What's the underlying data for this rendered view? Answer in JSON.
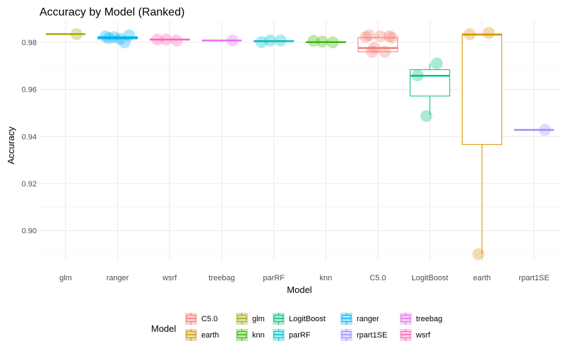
{
  "chart_data": {
    "type": "box",
    "title": "Accuracy by Model (Ranked)",
    "xlabel": "Model",
    "ylabel": "Accuracy",
    "ylim": [
      0.887,
      0.989
    ],
    "yticks": [
      0.9,
      0.92,
      0.94,
      0.96,
      0.98
    ],
    "ytick_labels": [
      "0.90",
      "0.92",
      "0.94",
      "0.96",
      "0.98"
    ],
    "grid": true,
    "legend_position": "bottom",
    "legend_title": "Model",
    "categories": [
      "glm",
      "ranger",
      "wsrf",
      "treebag",
      "parRF",
      "knn",
      "C5.0",
      "LogitBoost",
      "earth",
      "rpart1SE"
    ],
    "series": [
      {
        "name": "glm",
        "color": "#A3A500",
        "box": {
          "lower_whisker": 0.9835,
          "q1": 0.9835,
          "median": 0.9835,
          "q3": 0.9835,
          "upper_whisker": 0.9835
        },
        "points": [
          0.9835
        ]
      },
      {
        "name": "ranger",
        "color": "#00B0F6",
        "box": {
          "lower_whisker": 0.9812,
          "q1": 0.9815,
          "median": 0.982,
          "q3": 0.9824,
          "upper_whisker": 0.9828
        },
        "points": [
          0.9825,
          0.98,
          0.9822,
          0.983,
          0.9818,
          0.9815
        ]
      },
      {
        "name": "wsrf",
        "color": "#FF62BC",
        "box": {
          "lower_whisker": 0.9808,
          "q1": 0.981,
          "median": 0.9812,
          "q3": 0.9813,
          "upper_whisker": 0.9814
        },
        "points": [
          0.9812,
          0.9808,
          0.9812
        ]
      },
      {
        "name": "treebag",
        "color": "#E76BF3",
        "box": {
          "lower_whisker": 0.9808,
          "q1": 0.9808,
          "median": 0.9808,
          "q3": 0.9808,
          "upper_whisker": 0.9808
        },
        "points": [
          0.9808
        ]
      },
      {
        "name": "parRF",
        "color": "#00BFC4",
        "box": {
          "lower_whisker": 0.9801,
          "q1": 0.9803,
          "median": 0.9805,
          "q3": 0.9807,
          "upper_whisker": 0.9808
        },
        "points": [
          0.9801,
          0.9808,
          0.9808
        ]
      },
      {
        "name": "knn",
        "color": "#39B600",
        "box": {
          "lower_whisker": 0.9799,
          "q1": 0.98,
          "median": 0.9801,
          "q3": 0.9803,
          "upper_whisker": 0.9806
        },
        "points": [
          0.9806,
          0.98,
          0.9803
        ]
      },
      {
        "name": "C5.0",
        "color": "#F8766D",
        "box": {
          "lower_whisker": 0.9756,
          "q1": 0.976,
          "median": 0.9776,
          "q3": 0.982,
          "upper_whisker": 0.983
        },
        "points": [
          0.9822,
          0.976,
          0.9778,
          0.9826,
          0.983,
          0.9825,
          0.982,
          0.976
        ]
      },
      {
        "name": "LogitBoost",
        "color": "#00BF7D",
        "box": {
          "lower_whisker": 0.949,
          "q1": 0.9572,
          "median": 0.9658,
          "q3": 0.9684,
          "upper_whisker": 0.971
        },
        "points": [
          0.966,
          0.971,
          0.9487
        ]
      },
      {
        "name": "earth",
        "color": "#D89000",
        "box": {
          "lower_whisker": 0.89,
          "q1": 0.9366,
          "median": 0.9833,
          "q3": 0.9835,
          "upper_whisker": 0.9838
        },
        "points": [
          0.9835,
          0.984,
          0.89
        ]
      },
      {
        "name": "rpart1SE",
        "color": "#9590FF",
        "box": {
          "lower_whisker": 0.9428,
          "q1": 0.9428,
          "median": 0.9428,
          "q3": 0.9428,
          "upper_whisker": 0.9428
        },
        "points": [
          0.9428
        ]
      }
    ],
    "legend_order": [
      "C5.0",
      "earth",
      "glm",
      "knn",
      "LogitBoost",
      "parRF",
      "ranger",
      "rpart1SE",
      "treebag",
      "wsrf"
    ]
  }
}
